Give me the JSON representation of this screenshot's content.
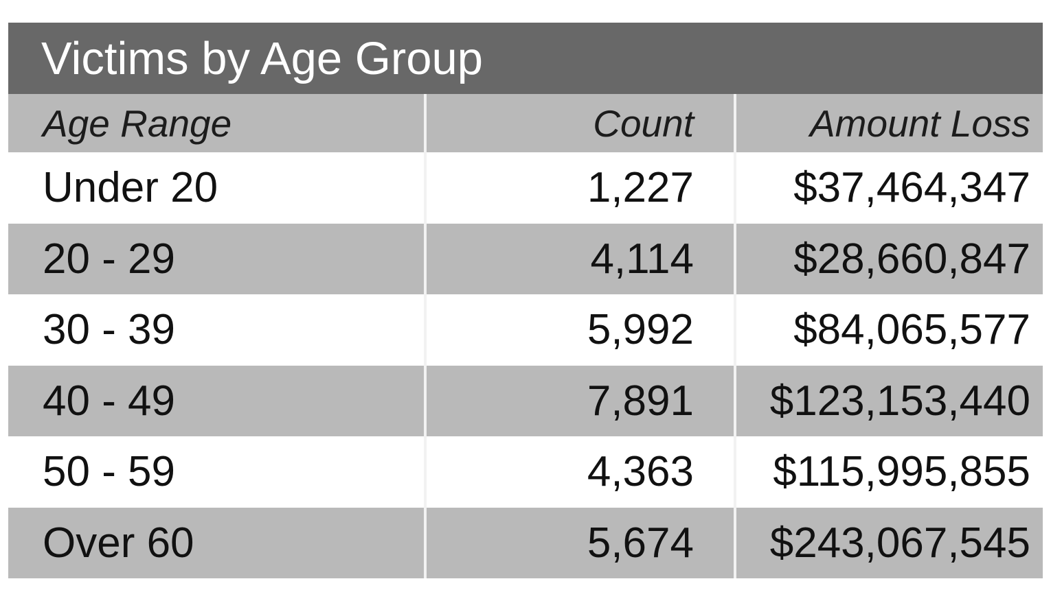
{
  "table": {
    "title": "Victims by Age Group",
    "columns": [
      "Age Range",
      "Count",
      "Amount Loss"
    ],
    "rows": [
      {
        "age_range": "Under 20",
        "count": "1,227",
        "amount_loss": "$37,464,347"
      },
      {
        "age_range": "20 - 29",
        "count": "4,114",
        "amount_loss": "$28,660,847"
      },
      {
        "age_range": "30 - 39",
        "count": "5,992",
        "amount_loss": "$84,065,577"
      },
      {
        "age_range": "40 - 49",
        "count": "7,891",
        "amount_loss": "$123,153,440"
      },
      {
        "age_range": "50 - 59",
        "count": "4,363",
        "amount_loss": "$115,995,855"
      },
      {
        "age_range": "Over 60",
        "count": "5,674",
        "amount_loss": "$243,067,545"
      }
    ]
  },
  "colors": {
    "title_bar_bg": "#686868",
    "title_text": "#ffffff",
    "header_row_bg": "#b9b9b9",
    "stripe_row_bg": "#b9b9b9",
    "white_row_bg": "#ffffff",
    "cell_text": "#111111"
  }
}
